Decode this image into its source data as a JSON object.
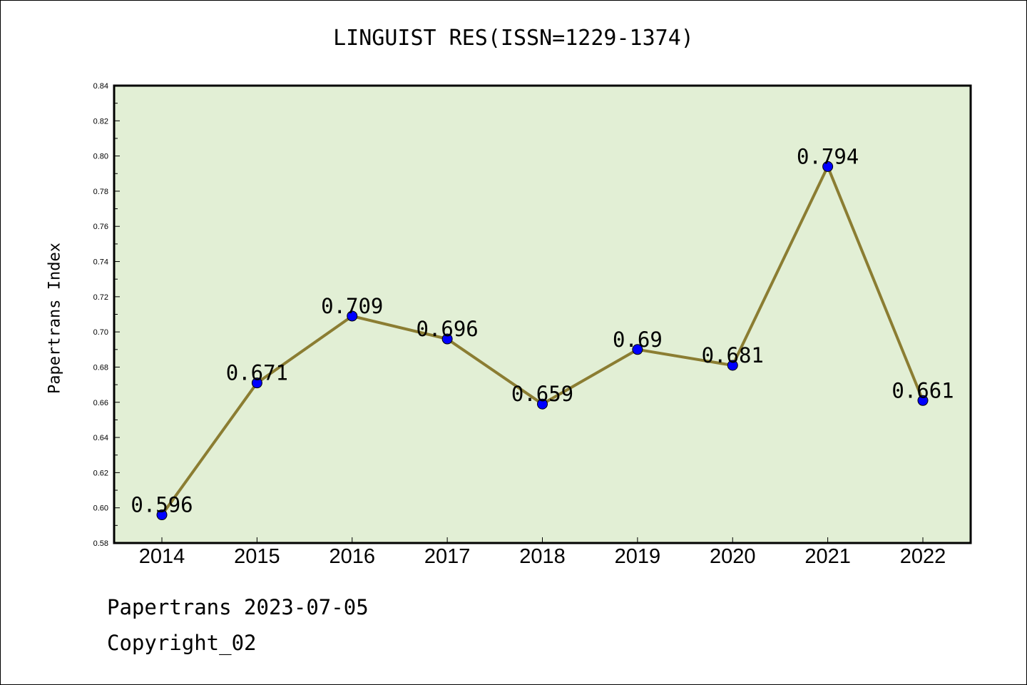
{
  "title": "LINGUIST RES(ISSN=1229-1374)",
  "footer": {
    "line1": "Papertrans 2023-07-05",
    "line2": "Copyright_02"
  },
  "colors": {
    "plot_bg": "#e2efd5",
    "line": "#8b7d32",
    "marker": "#0000ff"
  },
  "chart_data": {
    "type": "line",
    "title": "LINGUIST RES(ISSN=1229-1374)",
    "xlabel": "",
    "ylabel": "Papertrans Index",
    "categories": [
      "2014",
      "2015",
      "2016",
      "2017",
      "2018",
      "2019",
      "2020",
      "2021",
      "2022"
    ],
    "values": [
      0.596,
      0.671,
      0.709,
      0.696,
      0.659,
      0.69,
      0.681,
      0.794,
      0.661
    ],
    "data_labels": [
      "0.596",
      "0.671",
      "0.709",
      "0.696",
      "0.659",
      "0.69",
      "0.681",
      "0.794",
      "0.661"
    ],
    "ylim": [
      0.58,
      0.84
    ],
    "yticks": [
      "0.58",
      "0.60",
      "0.62",
      "0.64",
      "0.66",
      "0.68",
      "0.70",
      "0.72",
      "0.74",
      "0.76",
      "0.78",
      "0.80",
      "0.82",
      "0.84"
    ],
    "grid": false,
    "legend": "none"
  }
}
